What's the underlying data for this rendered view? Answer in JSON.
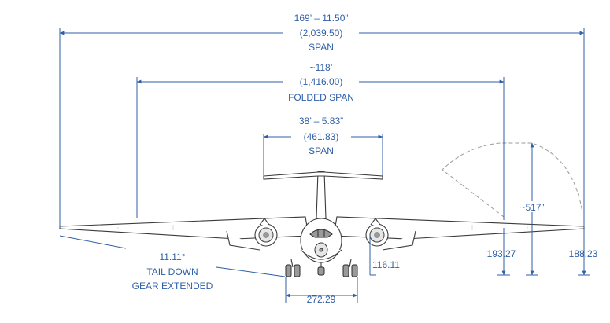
{
  "dimensions": {
    "span": {
      "feet_inches": "169’ – 11.50”",
      "inches": "(2,039.50)",
      "label": "SPAN"
    },
    "folded_span": {
      "feet_inches": "~118’",
      "inches": "(1,416.00)",
      "label": "FOLDED SPAN"
    },
    "tail_span": {
      "feet_inches": "38’ – 5.83”",
      "inches": "(461.83)",
      "label": "SPAN"
    },
    "fold_height": "~517”",
    "tip_height_folded": "193.27",
    "tip_height": "188.23",
    "ground_clearance": "116.11",
    "gear_track": "272.29",
    "tail_down_angle": "11.11°",
    "tail_down_line1": "TAIL DOWN",
    "tail_down_line2": "GEAR EXTENDED"
  },
  "colors": {
    "dimension": "#2f5fa7",
    "aircraft_outline": "#3a3a3a",
    "fold_arc": "#9a9a9a"
  }
}
